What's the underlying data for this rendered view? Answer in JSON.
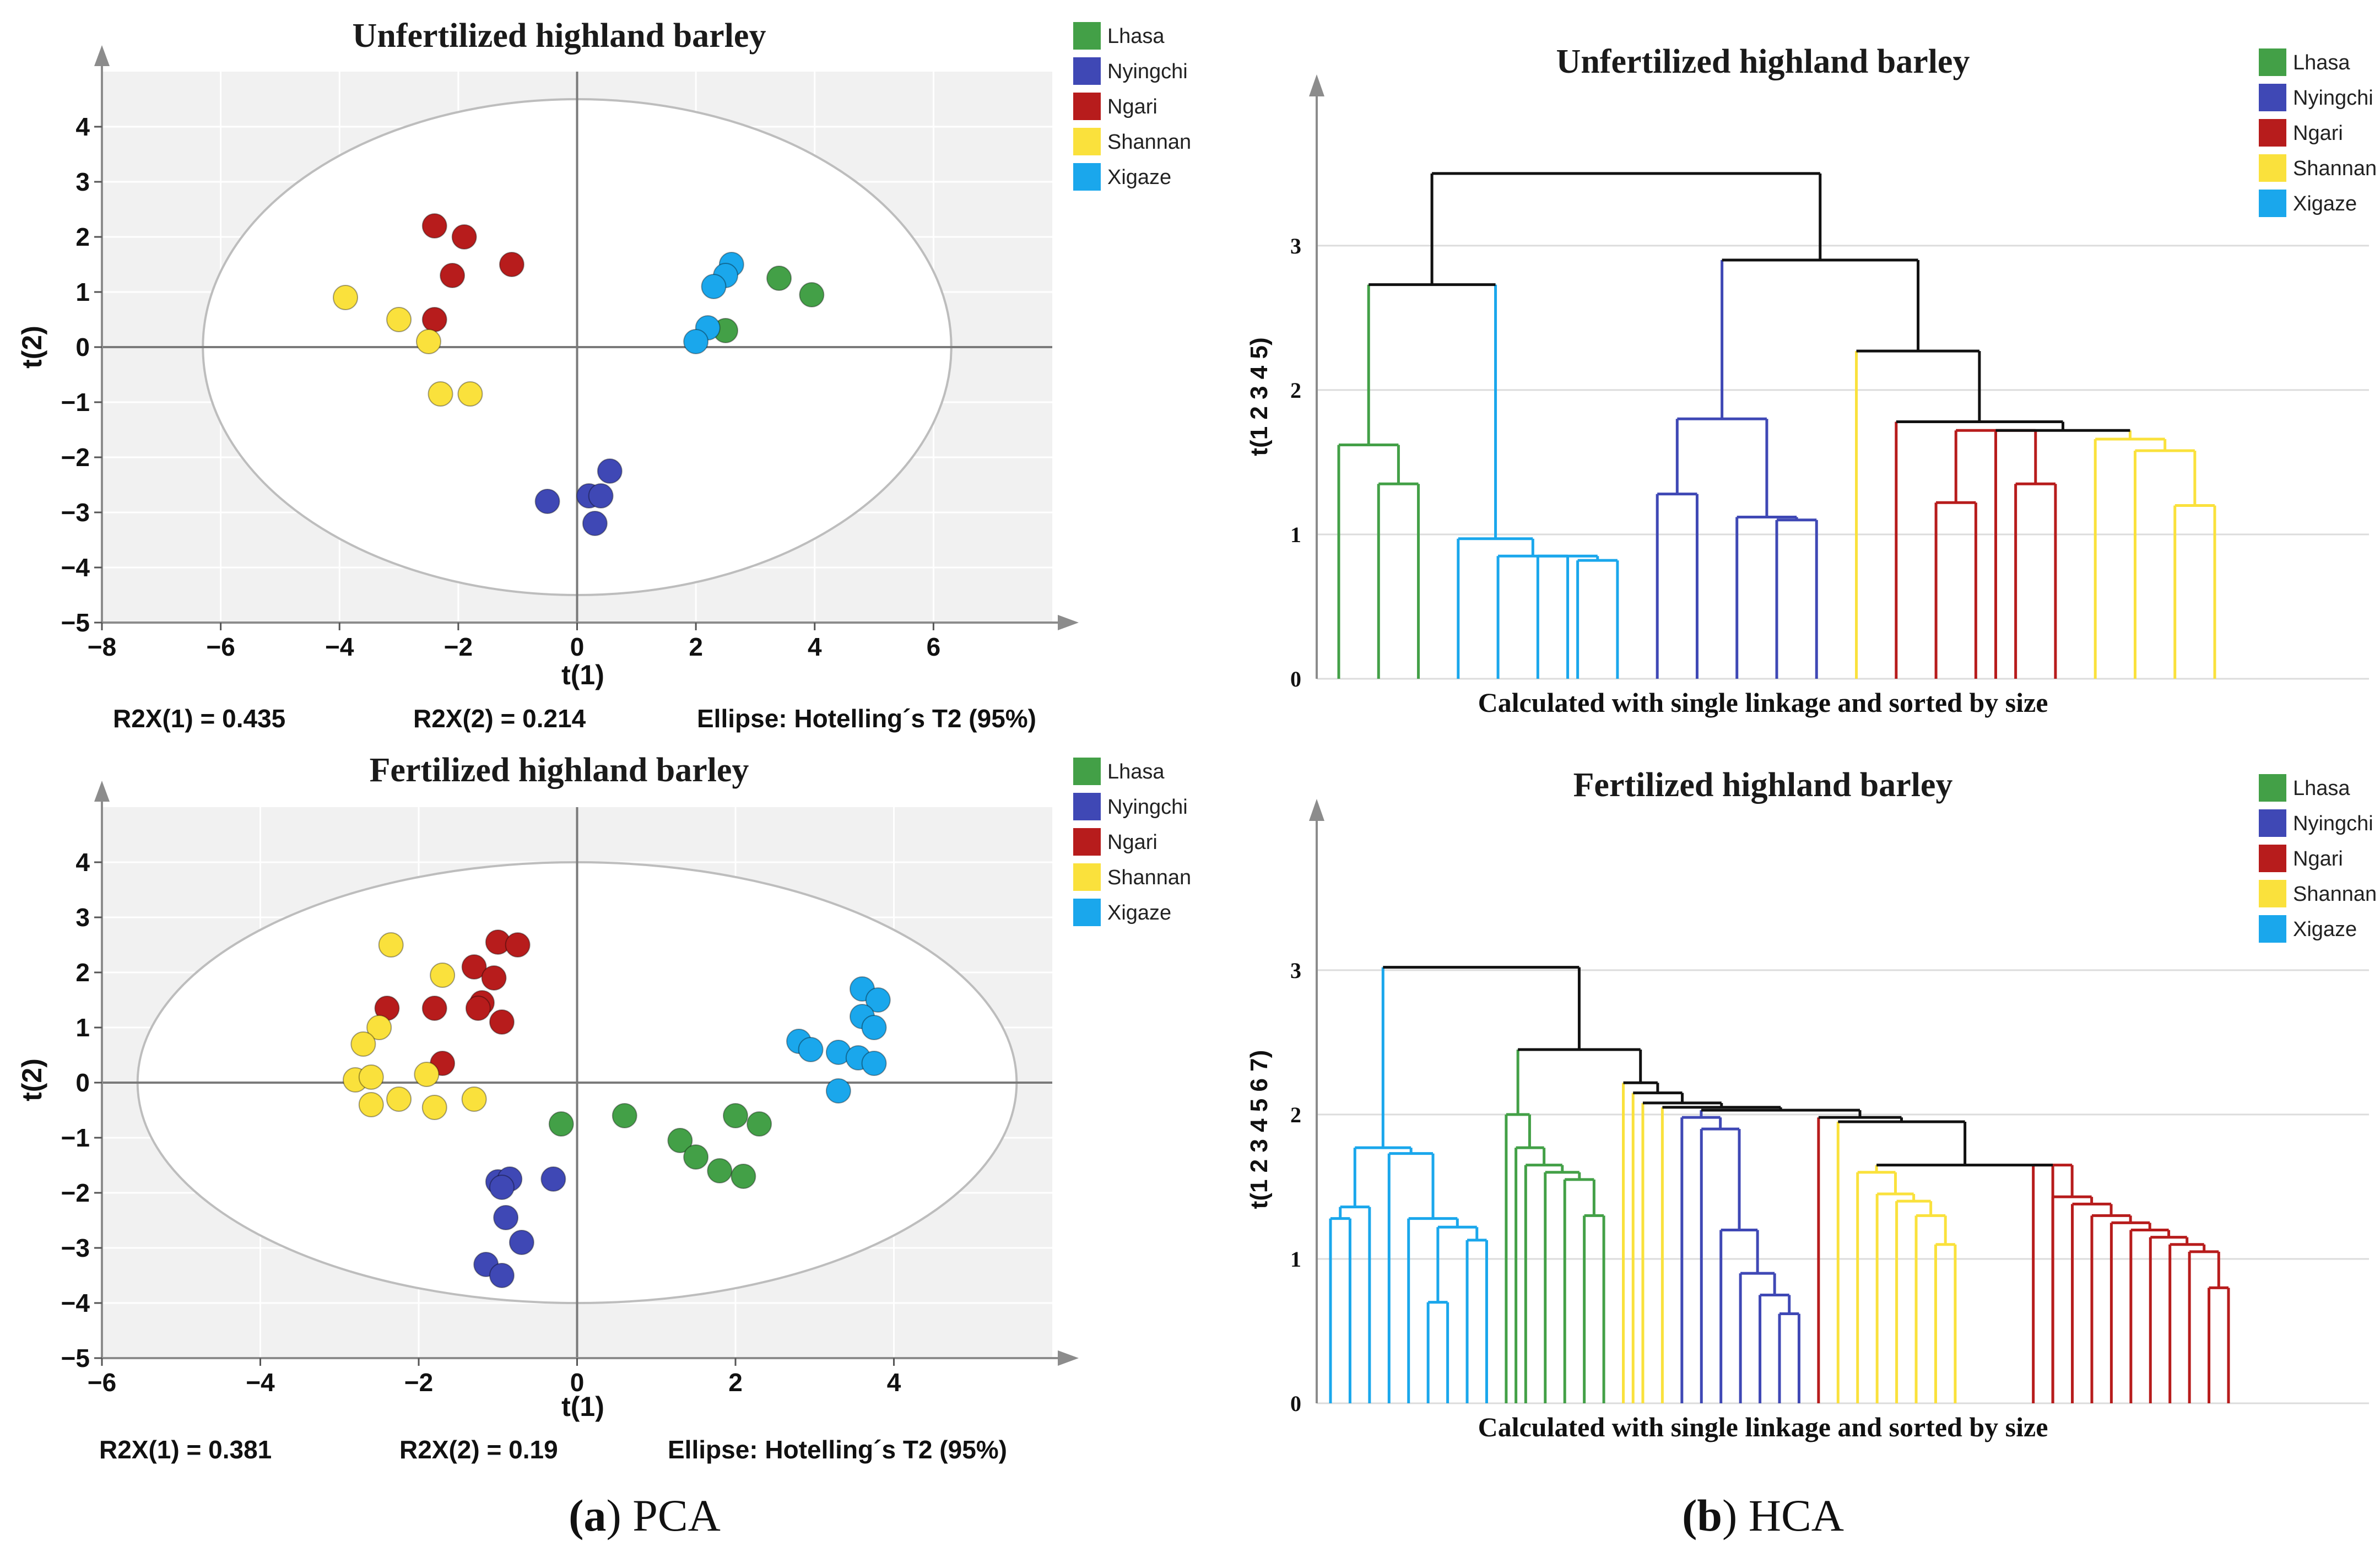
{
  "legend": {
    "entries": [
      "Lhasa",
      "Nyingchi",
      "Ngari",
      "Shannan",
      "Xigaze"
    ],
    "colors": {
      "Lhasa": "#43a047",
      "Nyingchi": "#3f48b5",
      "Ngari": "#b71c1c",
      "Shannan": "#fae13c",
      "Xigaze": "#1aa7ec"
    }
  },
  "captions": {
    "a": {
      "letter": "a",
      "text": "PCA"
    },
    "b": {
      "letter": "b",
      "text": "HCA"
    }
  },
  "chart_data": [
    {
      "id": "pca-unfertilized",
      "type": "scatter",
      "title": "Unfertilized highland barley",
      "xlabel": "t(1)",
      "ylabel": "t(2)",
      "xlim": [
        -8,
        8
      ],
      "ylim": [
        -5,
        5
      ],
      "xticks": [
        -8,
        -6,
        -4,
        -2,
        0,
        2,
        4,
        6
      ],
      "yticks": [
        -5,
        -4,
        -3,
        -2,
        -1,
        0,
        1,
        2,
        3,
        4
      ],
      "ellipse": {
        "cx": 0,
        "cy": 0,
        "rx": 6.3,
        "ry": 4.5
      },
      "stats": [
        "R2X(1) = 0.435",
        "R2X(2) = 0.214",
        "Ellipse: Hotelling´s T2 (95%)"
      ],
      "series": [
        {
          "name": "Lhasa",
          "points": [
            [
              3.4,
              1.25
            ],
            [
              3.95,
              0.95
            ],
            [
              2.5,
              0.3
            ]
          ]
        },
        {
          "name": "Nyingchi",
          "points": [
            [
              -0.5,
              -2.8
            ],
            [
              0.2,
              -2.7
            ],
            [
              0.4,
              -2.7
            ],
            [
              0.55,
              -2.25
            ],
            [
              0.3,
              -3.2
            ]
          ]
        },
        {
          "name": "Ngari",
          "points": [
            [
              -2.4,
              2.2
            ],
            [
              -1.9,
              2.0
            ],
            [
              -2.1,
              1.3
            ],
            [
              -1.1,
              1.5
            ],
            [
              -2.4,
              0.5
            ]
          ]
        },
        {
          "name": "Shannan",
          "points": [
            [
              -3.9,
              0.9
            ],
            [
              -3.0,
              0.5
            ],
            [
              -2.5,
              0.1
            ],
            [
              -2.3,
              -0.85
            ],
            [
              -1.8,
              -0.85
            ]
          ]
        },
        {
          "name": "Xigaze",
          "points": [
            [
              2.6,
              1.5
            ],
            [
              2.5,
              1.3
            ],
            [
              2.3,
              1.1
            ],
            [
              2.2,
              0.35
            ],
            [
              2.0,
              0.1
            ]
          ]
        }
      ]
    },
    {
      "id": "pca-fertilized",
      "type": "scatter",
      "title": "Fertilized highland barley",
      "xlabel": "t(1)",
      "ylabel": "t(2)",
      "xlim": [
        -6,
        6
      ],
      "ylim": [
        -5,
        5
      ],
      "xticks": [
        -6,
        -4,
        -2,
        0,
        2,
        4
      ],
      "yticks": [
        -5,
        -4,
        -3,
        -2,
        -1,
        0,
        1,
        2,
        3,
        4
      ],
      "ellipse": {
        "cx": 0,
        "cy": 0,
        "rx": 5.55,
        "ry": 4.0
      },
      "stats": [
        "R2X(1) = 0.381",
        "R2X(2) = 0.19",
        "Ellipse: Hotelling´s T2 (95%)"
      ],
      "series": [
        {
          "name": "Lhasa",
          "points": [
            [
              -0.2,
              -0.75
            ],
            [
              0.6,
              -0.6
            ],
            [
              1.3,
              -1.05
            ],
            [
              1.5,
              -1.35
            ],
            [
              1.8,
              -1.6
            ],
            [
              2.0,
              -0.6
            ],
            [
              2.3,
              -0.75
            ],
            [
              2.1,
              -1.7
            ]
          ]
        },
        {
          "name": "Nyingchi",
          "points": [
            [
              -1.0,
              -1.8
            ],
            [
              -0.85,
              -1.75
            ],
            [
              -0.95,
              -1.9
            ],
            [
              -0.3,
              -1.75
            ],
            [
              -0.9,
              -2.45
            ],
            [
              -0.7,
              -2.9
            ],
            [
              -1.15,
              -3.3
            ],
            [
              -0.95,
              -3.5
            ]
          ]
        },
        {
          "name": "Ngari",
          "points": [
            [
              -1.0,
              2.55
            ],
            [
              -0.75,
              2.5
            ],
            [
              -1.3,
              2.1
            ],
            [
              -1.05,
              1.9
            ],
            [
              -1.2,
              1.45
            ],
            [
              -1.25,
              1.35
            ],
            [
              -0.95,
              1.1
            ],
            [
              -2.4,
              1.35
            ],
            [
              -1.8,
              1.35
            ],
            [
              -1.7,
              0.35
            ]
          ]
        },
        {
          "name": "Shannan",
          "points": [
            [
              -2.35,
              2.5
            ],
            [
              -1.7,
              1.95
            ],
            [
              -2.5,
              1.0
            ],
            [
              -2.7,
              0.7
            ],
            [
              -2.8,
              0.05
            ],
            [
              -2.6,
              0.1
            ],
            [
              -2.6,
              -0.4
            ],
            [
              -2.25,
              -0.3
            ],
            [
              -1.9,
              0.15
            ],
            [
              -1.8,
              -0.45
            ],
            [
              -1.3,
              -0.3
            ]
          ]
        },
        {
          "name": "Xigaze",
          "points": [
            [
              3.6,
              1.7
            ],
            [
              3.8,
              1.5
            ],
            [
              3.6,
              1.2
            ],
            [
              3.75,
              1.0
            ],
            [
              2.8,
              0.75
            ],
            [
              2.95,
              0.6
            ],
            [
              3.3,
              0.55
            ],
            [
              3.55,
              0.45
            ],
            [
              3.75,
              0.35
            ],
            [
              3.3,
              -0.15
            ]
          ]
        }
      ]
    },
    {
      "id": "hca-unfertilized",
      "type": "dendrogram",
      "title": "Unfertilized highland barley",
      "ylabel": "t(1 2 3 4 5)",
      "yticks": [
        0,
        1,
        2,
        3
      ],
      "ylim": [
        0,
        3.9
      ],
      "n_leaves": 23,
      "xlabel": "Calculated with single linkage and sorted by size",
      "links": [
        {
          "x": [
            1,
            2
          ],
          "h": 1.35,
          "c": "Lhasa"
        },
        {
          "x": [
            0,
            1.5
          ],
          "h": 1.62,
          "c": "Lhasa"
        },
        {
          "x": [
            6,
            7
          ],
          "h": 0.82,
          "c": "Xigaze"
        },
        {
          "x": [
            5,
            6.5
          ],
          "h": 0.85,
          "c": "Xigaze"
        },
        {
          "x": [
            4,
            5.75
          ],
          "h": 0.85,
          "c": "Xigaze"
        },
        {
          "x": [
            3,
            4.875
          ],
          "h": 0.97,
          "c": "Xigaze"
        },
        {
          "x": [
            0.75,
            3.9375
          ],
          "h": 2.73,
          "c": "Lhasa",
          "c2": "Xigaze",
          "top": "black"
        },
        {
          "x": [
            11,
            12
          ],
          "h": 1.1,
          "c": "Nyingchi"
        },
        {
          "x": [
            10,
            11.5
          ],
          "h": 1.12,
          "c": "Nyingchi"
        },
        {
          "x": [
            8,
            9
          ],
          "h": 1.28,
          "c": "Nyingchi"
        },
        {
          "x": [
            8.5,
            10.75
          ],
          "h": 1.8,
          "c": "Nyingchi"
        },
        {
          "x": [
            15,
            16
          ],
          "h": 1.22,
          "c": "Ngari"
        },
        {
          "x": [
            17,
            18
          ],
          "h": 1.35,
          "c": "Ngari"
        },
        {
          "x": [
            15.5,
            17.5
          ],
          "h": 1.72,
          "c": "Ngari"
        },
        {
          "x": [
            21,
            22
          ],
          "h": 1.2,
          "c": "Shannan"
        },
        {
          "x": [
            20,
            21.5
          ],
          "h": 1.58,
          "c": "Shannan"
        },
        {
          "x": [
            19,
            20.75
          ],
          "h": 1.66,
          "c": "Shannan"
        },
        {
          "x": [
            16.5,
            19.875
          ],
          "h": 1.72,
          "c": "Ngari",
          "c2": "Shannan",
          "top": "black"
        },
        {
          "x": [
            14,
            18.1875
          ],
          "h": 1.78,
          "c": "Ngari",
          "c2": "black",
          "top": "black"
        },
        {
          "x": [
            13,
            16.09
          ],
          "h": 2.27,
          "c": "Shannan",
          "c2": "black",
          "top": "black"
        },
        {
          "x": [
            9.625,
            14.55
          ],
          "h": 2.9,
          "c": "Nyingchi",
          "c2": "black",
          "top": "black"
        },
        {
          "x": [
            2.34,
            12.09
          ],
          "h": 3.5,
          "c": "black",
          "c2": "black",
          "top": "black"
        }
      ],
      "leaf_colors": [
        "Lhasa",
        "Lhasa",
        "Lhasa",
        "Xigaze",
        "Xigaze",
        "Xigaze",
        "Xigaze",
        "Xigaze",
        "Nyingchi",
        "Nyingchi",
        "Nyingchi",
        "Nyingchi",
        "Nyingchi",
        "Shannan",
        "Ngari",
        "Ngari",
        "Ngari",
        "Ngari",
        "Ngari",
        "Shannan",
        "Shannan",
        "Shannan",
        "Shannan"
      ]
    },
    {
      "id": "hca-fertilized",
      "type": "dendrogram",
      "title": "Fertilized highland barley",
      "ylabel": "t(1 2 3 4 5 6 7)",
      "yticks": [
        0,
        1,
        2,
        3
      ],
      "ylim": [
        0,
        3.9
      ],
      "n_leaves": 47,
      "xlabel": "Calculated with single linkage and sorted by size",
      "links": [
        {
          "x": [
            0,
            1
          ],
          "h": 1.28,
          "c": "Xigaze"
        },
        {
          "x": [
            0.5,
            2
          ],
          "h": 1.36,
          "c": "Xigaze"
        },
        {
          "x": [
            5,
            6
          ],
          "h": 0.7,
          "c": "Xigaze"
        },
        {
          "x": [
            7,
            8
          ],
          "h": 1.13,
          "c": "Xigaze"
        },
        {
          "x": [
            5.5,
            7.5
          ],
          "h": 1.22,
          "c": "Xigaze"
        },
        {
          "x": [
            4,
            6.5
          ],
          "h": 1.28,
          "c": "Xigaze"
        },
        {
          "x": [
            3,
            5.25
          ],
          "h": 1.73,
          "c": "Xigaze"
        },
        {
          "x": [
            1.25,
            4.125
          ],
          "h": 1.77,
          "c": "Xigaze"
        },
        {
          "x": [
            13,
            14
          ],
          "h": 1.3,
          "c": "Lhasa"
        },
        {
          "x": [
            12,
            13.5
          ],
          "h": 1.55,
          "c": "Lhasa"
        },
        {
          "x": [
            11,
            12.75
          ],
          "h": 1.6,
          "c": "Lhasa"
        },
        {
          "x": [
            10,
            11.875
          ],
          "h": 1.65,
          "c": "Lhasa"
        },
        {
          "x": [
            9.5,
            10.94
          ],
          "h": 1.77,
          "c": "Lhasa"
        },
        {
          "x": [
            9,
            10.2
          ],
          "h": 2.0,
          "c": "Lhasa"
        },
        {
          "x": [
            23,
            24
          ],
          "h": 0.62,
          "c": "Nyingchi"
        },
        {
          "x": [
            22,
            23.5
          ],
          "h": 0.75,
          "c": "Nyingchi"
        },
        {
          "x": [
            21,
            22.75
          ],
          "h": 0.9,
          "c": "Nyingchi"
        },
        {
          "x": [
            20,
            21.875
          ],
          "h": 1.2,
          "c": "Nyingchi"
        },
        {
          "x": [
            19,
            20.94
          ],
          "h": 1.9,
          "c": "Nyingchi"
        },
        {
          "x": [
            18,
            19.97
          ],
          "h": 1.98,
          "c": "Nyingchi"
        },
        {
          "x": [
            31,
            32
          ],
          "h": 1.1,
          "c": "Shannan"
        },
        {
          "x": [
            30,
            31.5
          ],
          "h": 1.3,
          "c": "Shannan"
        },
        {
          "x": [
            29,
            30.75
          ],
          "h": 1.4,
          "c": "Shannan"
        },
        {
          "x": [
            28,
            29.875
          ],
          "h": 1.45,
          "c": "Shannan"
        },
        {
          "x": [
            27,
            28.94
          ],
          "h": 1.6,
          "c": "Shannan"
        },
        {
          "x": [
            45,
            46
          ],
          "h": 0.8,
          "c": "Ngari"
        },
        {
          "x": [
            44,
            45.5
          ],
          "h": 1.05,
          "c": "Ngari"
        },
        {
          "x": [
            43,
            44.75
          ],
          "h": 1.1,
          "c": "Ngari"
        },
        {
          "x": [
            42,
            43.875
          ],
          "h": 1.15,
          "c": "Ngari"
        },
        {
          "x": [
            41,
            42.94
          ],
          "h": 1.2,
          "c": "Ngari"
        },
        {
          "x": [
            40,
            41.97
          ],
          "h": 1.25,
          "c": "Ngari"
        },
        {
          "x": [
            39,
            40.98
          ],
          "h": 1.3,
          "c": "Ngari"
        },
        {
          "x": [
            38,
            39.99
          ],
          "h": 1.38,
          "c": "Ngari"
        },
        {
          "x": [
            37,
            38.99
          ],
          "h": 1.43,
          "c": "Ngari"
        },
        {
          "x": [
            36,
            37.99
          ],
          "h": 1.65,
          "c": "Ngari"
        },
        {
          "x": [
            27.97,
            37
          ],
          "h": 1.65,
          "c": "Shannan",
          "c2": "Ngari",
          "top": "black"
        },
        {
          "x": [
            26,
            32.5
          ],
          "h": 1.95,
          "c": "Shannan",
          "c2": "black",
          "top": "black"
        },
        {
          "x": [
            25,
            29.25
          ],
          "h": 1.98,
          "c": "Ngari",
          "c2": "black",
          "top": "black"
        },
        {
          "x": [
            18.99,
            27.12
          ],
          "h": 2.03,
          "c": "Nyingchi",
          "c2": "black",
          "top": "black"
        },
        {
          "x": [
            17,
            23.06
          ],
          "h": 2.05,
          "c": "Shannan",
          "c2": "black",
          "top": "black"
        },
        {
          "x": [
            16,
            20.03
          ],
          "h": 2.08,
          "c": "Shannan",
          "c2": "black",
          "top": "black"
        },
        {
          "x": [
            15.5,
            18.02
          ],
          "h": 2.15,
          "c": "Shannan",
          "c2": "black",
          "top": "black"
        },
        {
          "x": [
            15,
            16.76
          ],
          "h": 2.22,
          "c": "Shannan",
          "c2": "black",
          "top": "black"
        },
        {
          "x": [
            9.6,
            15.88
          ],
          "h": 2.45,
          "c": "Lhasa",
          "c2": "black",
          "top": "black"
        },
        {
          "x": [
            2.69,
            12.74
          ],
          "h": 3.02,
          "c": "Xigaze",
          "c2": "black",
          "top": "black"
        }
      ],
      "leaf_colors": [
        "Xigaze",
        "Xigaze",
        "Xigaze",
        "Xigaze",
        "Xigaze",
        "Xigaze",
        "Xigaze",
        "Xigaze",
        "Xigaze",
        "Lhasa",
        "Lhasa",
        "Lhasa",
        "Lhasa",
        "Lhasa",
        "Lhasa",
        "Shannan",
        "Shannan",
        "Shannan",
        "Nyingchi",
        "Nyingchi",
        "Nyingchi",
        "Nyingchi",
        "Nyingchi",
        "Nyingchi",
        "Nyingchi",
        "Ngari",
        "Shannan",
        "Shannan",
        "Shannan",
        "Shannan",
        "Shannan",
        "Shannan",
        "Shannan",
        "Ngari",
        "Ngari",
        "Ngari",
        "Ngari",
        "Ngari",
        "Ngari",
        "Ngari",
        "Ngari",
        "Ngari",
        "Ngari",
        "Ngari",
        "Ngari",
        "Ngari",
        "Ngari"
      ]
    }
  ]
}
